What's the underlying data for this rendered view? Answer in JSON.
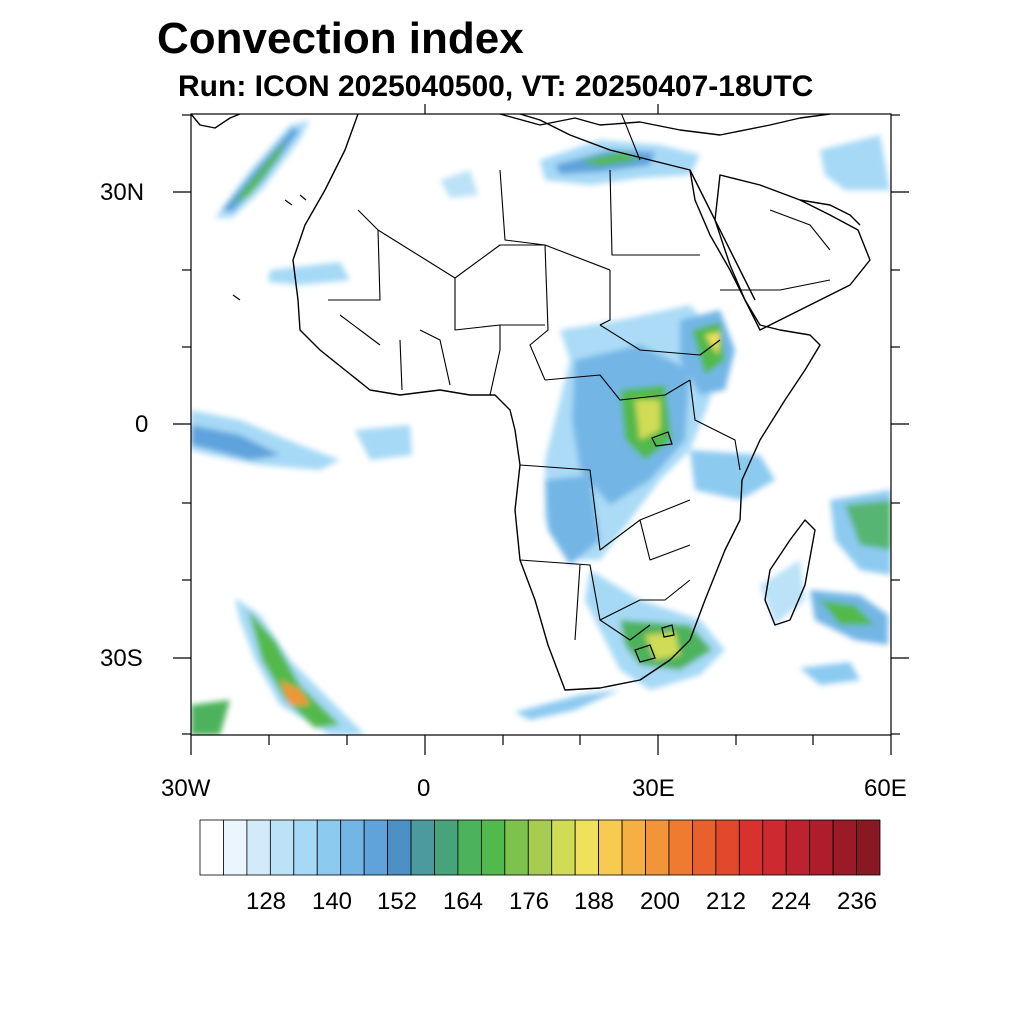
{
  "title": "Convection index",
  "subtitle": "Run: ICON 2025040500,  VT: 20250407-18UTC",
  "axes": {
    "lat_labels": [
      "30N",
      "0",
      "30S"
    ],
    "lon_labels": [
      "30W",
      "0",
      "30E",
      "60E"
    ]
  },
  "colorbar": {
    "labels": [
      "128",
      "140",
      "152",
      "164",
      "176",
      "188",
      "200",
      "212",
      "224",
      "236"
    ],
    "colors": [
      "#ffffff",
      "#eaf5fd",
      "#d2ebfa",
      "#bce2f8",
      "#a6d9f6",
      "#8ccaf0",
      "#73b6e6",
      "#5fa3dc",
      "#4d90c6",
      "#4a9a9e",
      "#47a37c",
      "#4db25c",
      "#52b94c",
      "#7ec24e",
      "#a8cc50",
      "#d0dc56",
      "#f0e15a",
      "#f8cb50",
      "#f6b042",
      "#f29538",
      "#ee7b30",
      "#e8602c",
      "#e1482c",
      "#d8322e",
      "#cc2a30",
      "#be2230",
      "#ad1d2c",
      "#9a1a28",
      "#881822"
    ]
  },
  "regions": {
    "region_1": "North Atlantic (Canary) band",
    "region_2": "Mediterranean",
    "region_3": "Central Africa",
    "region_4": "Ethiopian Highlands",
    "region_5": "Southern Africa",
    "region_6": "South Atlantic band",
    "region_7": "Equatorial Atlantic",
    "region_8": "Madagascar / Indian Ocean"
  }
}
